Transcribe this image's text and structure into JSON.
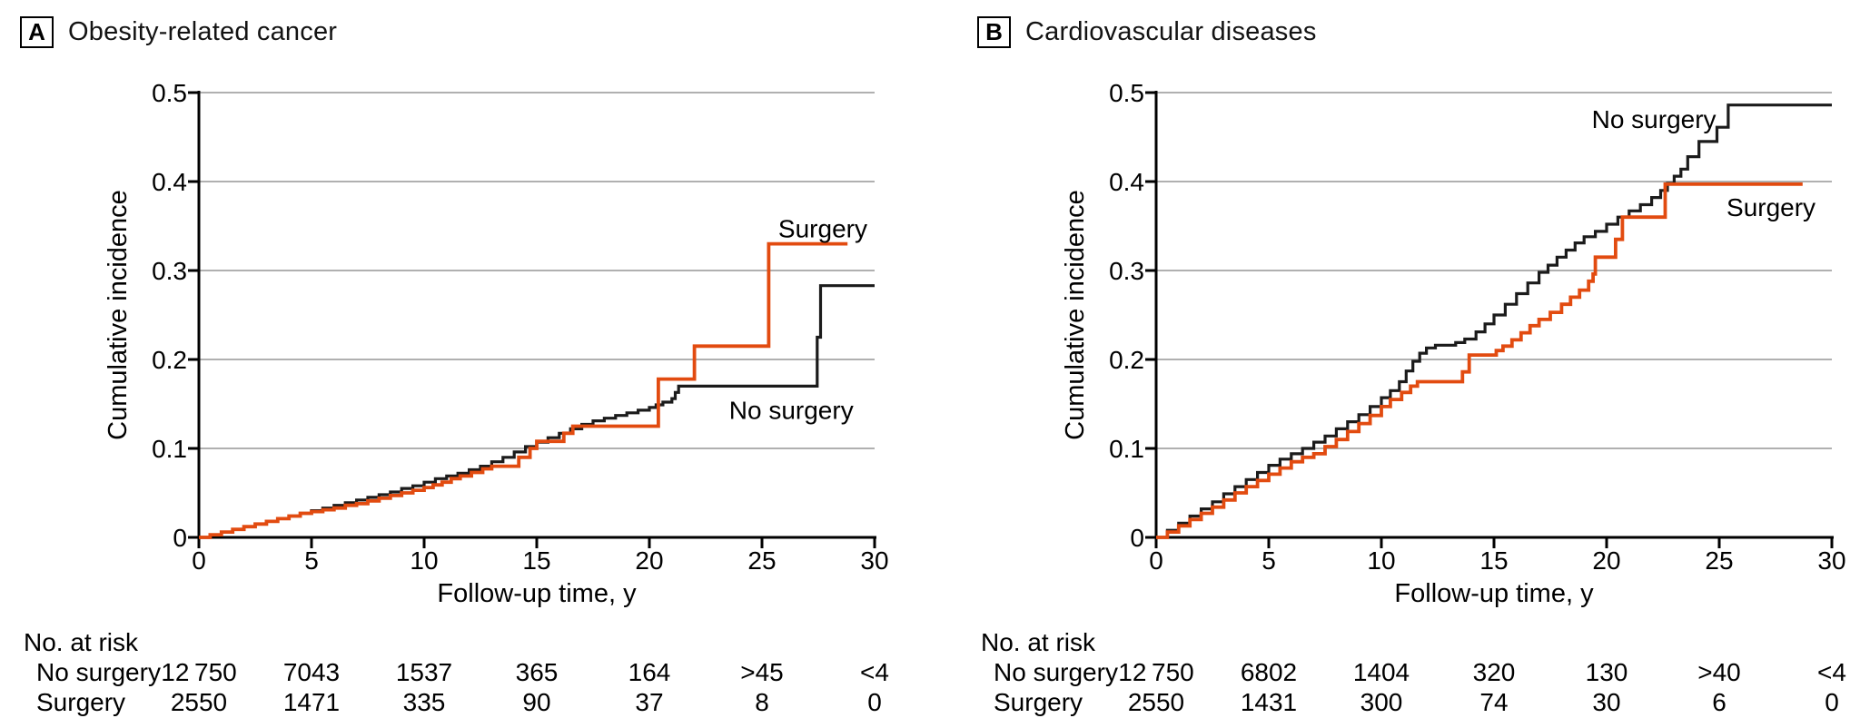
{
  "colors": {
    "surgery": "#E24B10",
    "no_surgery": "#1B1B1B",
    "gridline": "#B0B0B0",
    "axis": "#000000"
  },
  "chart_data": [
    {
      "type": "line",
      "panel_letter": "A",
      "title": "Obesity-related cancer",
      "xlabel": "Follow-up time, y",
      "ylabel": "Cumulative incidence",
      "xlim": [
        0,
        30
      ],
      "ylim": [
        0,
        0.5
      ],
      "grid": "horizontal",
      "legend_position": "inline-labels",
      "x_ticks": [
        0,
        5,
        10,
        15,
        20,
        25,
        30
      ],
      "x_tick_labels": [
        "0",
        "5",
        "10",
        "15",
        "20",
        "25",
        "30"
      ],
      "y_ticks": [
        0,
        0.1,
        0.2,
        0.3,
        0.4,
        0.5
      ],
      "y_tick_labels": [
        "0",
        "0.1",
        "0.2",
        "0.3",
        "0.4",
        "0.5"
      ],
      "series": [
        {
          "name": "No surgery",
          "color_key": "no_surgery",
          "points": [
            [
              0,
              0
            ],
            [
              0.5,
              0.003
            ],
            [
              1,
              0.006
            ],
            [
              1.5,
              0.009
            ],
            [
              2,
              0.012
            ],
            [
              2.5,
              0.015
            ],
            [
              3,
              0.018
            ],
            [
              3.5,
              0.021
            ],
            [
              4,
              0.024
            ],
            [
              4.5,
              0.027
            ],
            [
              5,
              0.03
            ],
            [
              5.5,
              0.033
            ],
            [
              6,
              0.036
            ],
            [
              6.5,
              0.039
            ],
            [
              7,
              0.042
            ],
            [
              7.5,
              0.045
            ],
            [
              8,
              0.048
            ],
            [
              8.5,
              0.051
            ],
            [
              9,
              0.055
            ],
            [
              9.5,
              0.058
            ],
            [
              10,
              0.062
            ],
            [
              10.5,
              0.066
            ],
            [
              11,
              0.069
            ],
            [
              11.5,
              0.072
            ],
            [
              12,
              0.076
            ],
            [
              12.5,
              0.08
            ],
            [
              13,
              0.085
            ],
            [
              13.5,
              0.09
            ],
            [
              14,
              0.096
            ],
            [
              14.5,
              0.102
            ],
            [
              15,
              0.107
            ],
            [
              15.5,
              0.112
            ],
            [
              16,
              0.117
            ],
            [
              16.5,
              0.122
            ],
            [
              17,
              0.127
            ],
            [
              17.5,
              0.131
            ],
            [
              18,
              0.134
            ],
            [
              18.5,
              0.137
            ],
            [
              19,
              0.14
            ],
            [
              19.5,
              0.143
            ],
            [
              20,
              0.146
            ],
            [
              20.3,
              0.149
            ],
            [
              20.6,
              0.152
            ],
            [
              21,
              0.156
            ],
            [
              21.15,
              0.163
            ],
            [
              21.3,
              0.17
            ],
            [
              27.35,
              0.17
            ],
            [
              27.45,
              0.225
            ],
            [
              27.6,
              0.283
            ],
            [
              30,
              0.283
            ]
          ]
        },
        {
          "name": "Surgery",
          "color_key": "surgery",
          "points": [
            [
              0,
              0
            ],
            [
              0.5,
              0.003
            ],
            [
              1,
              0.006
            ],
            [
              1.5,
              0.009
            ],
            [
              2,
              0.012
            ],
            [
              2.5,
              0.015
            ],
            [
              3,
              0.018
            ],
            [
              3.5,
              0.021
            ],
            [
              4,
              0.024
            ],
            [
              4.5,
              0.027
            ],
            [
              5,
              0.029
            ],
            [
              5.5,
              0.031
            ],
            [
              6,
              0.033
            ],
            [
              6.5,
              0.036
            ],
            [
              7,
              0.038
            ],
            [
              7.5,
              0.041
            ],
            [
              8,
              0.044
            ],
            [
              8.5,
              0.047
            ],
            [
              9,
              0.05
            ],
            [
              9.5,
              0.053
            ],
            [
              10,
              0.056
            ],
            [
              10.4,
              0.059
            ],
            [
              10.8,
              0.062
            ],
            [
              11.2,
              0.066
            ],
            [
              11.6,
              0.069
            ],
            [
              12.1,
              0.073
            ],
            [
              12.6,
              0.077
            ],
            [
              13,
              0.08
            ],
            [
              14.2,
              0.09
            ],
            [
              14.7,
              0.1
            ],
            [
              15,
              0.108
            ],
            [
              16.2,
              0.117
            ],
            [
              16.6,
              0.125
            ],
            [
              20.4,
              0.178
            ],
            [
              22,
              0.215
            ],
            [
              25.3,
              0.33
            ],
            [
              28.8,
              0.33
            ]
          ]
        }
      ],
      "curve_labels": [
        {
          "text": "Surgery",
          "year": 27.7,
          "value": 0.337
        },
        {
          "text": "No surgery",
          "year": 26.3,
          "value": 0.133
        }
      ],
      "risk_table": {
        "title": "No. at risk",
        "rows": [
          {
            "label": "No surgery",
            "values": [
              "12 750",
              "7043",
              "1537",
              "365",
              "164",
              ">45",
              "<4"
            ]
          },
          {
            "label": "Surgery",
            "values": [
              "2550",
              "1471",
              "335",
              "90",
              "37",
              "8",
              "0"
            ]
          }
        ]
      }
    },
    {
      "type": "line",
      "panel_letter": "B",
      "title": "Cardiovascular diseases",
      "xlabel": "Follow-up time, y",
      "ylabel": "Cumulative incidence",
      "xlim": [
        0,
        30
      ],
      "ylim": [
        0,
        0.5
      ],
      "grid": "horizontal",
      "legend_position": "inline-labels",
      "x_ticks": [
        0,
        5,
        10,
        15,
        20,
        25,
        30
      ],
      "x_tick_labels": [
        "0",
        "5",
        "10",
        "15",
        "20",
        "25",
        "30"
      ],
      "y_ticks": [
        0,
        0.1,
        0.2,
        0.3,
        0.4,
        0.5
      ],
      "y_tick_labels": [
        "0",
        "0.1",
        "0.2",
        "0.3",
        "0.4",
        "0.5"
      ],
      "series": [
        {
          "name": "No surgery",
          "color_key": "no_surgery",
          "points": [
            [
              0,
              0
            ],
            [
              0.5,
              0.008
            ],
            [
              1,
              0.016
            ],
            [
              1.5,
              0.024
            ],
            [
              2,
              0.032
            ],
            [
              2.5,
              0.04
            ],
            [
              3,
              0.049
            ],
            [
              3.5,
              0.057
            ],
            [
              4,
              0.065
            ],
            [
              4.5,
              0.073
            ],
            [
              5,
              0.081
            ],
            [
              5.5,
              0.088
            ],
            [
              6,
              0.094
            ],
            [
              6.5,
              0.1
            ],
            [
              7,
              0.107
            ],
            [
              7.5,
              0.114
            ],
            [
              8,
              0.122
            ],
            [
              8.5,
              0.13
            ],
            [
              9,
              0.138
            ],
            [
              9.5,
              0.147
            ],
            [
              10,
              0.157
            ],
            [
              10.4,
              0.165
            ],
            [
              10.8,
              0.175
            ],
            [
              11.1,
              0.187
            ],
            [
              11.4,
              0.198
            ],
            [
              11.7,
              0.207
            ],
            [
              12,
              0.213
            ],
            [
              12.4,
              0.216
            ],
            [
              13.3,
              0.219
            ],
            [
              13.7,
              0.223
            ],
            [
              14.2,
              0.231
            ],
            [
              14.6,
              0.24
            ],
            [
              15,
              0.25
            ],
            [
              15.5,
              0.262
            ],
            [
              16,
              0.274
            ],
            [
              16.5,
              0.286
            ],
            [
              17,
              0.298
            ],
            [
              17.4,
              0.306
            ],
            [
              17.8,
              0.315
            ],
            [
              18.2,
              0.323
            ],
            [
              18.6,
              0.331
            ],
            [
              19,
              0.338
            ],
            [
              19.5,
              0.344
            ],
            [
              20,
              0.352
            ],
            [
              20.5,
              0.36
            ],
            [
              21,
              0.367
            ],
            [
              21.5,
              0.374
            ],
            [
              22,
              0.382
            ],
            [
              22.4,
              0.39
            ],
            [
              22.7,
              0.398
            ],
            [
              23,
              0.406
            ],
            [
              23.3,
              0.414
            ],
            [
              23.6,
              0.428
            ],
            [
              24.1,
              0.445
            ],
            [
              24.9,
              0.461
            ],
            [
              25.4,
              0.486
            ],
            [
              30,
              0.486
            ]
          ]
        },
        {
          "name": "Surgery",
          "color_key": "surgery",
          "points": [
            [
              0,
              0
            ],
            [
              0.5,
              0.006
            ],
            [
              1,
              0.013
            ],
            [
              1.5,
              0.02
            ],
            [
              2,
              0.027
            ],
            [
              2.5,
              0.034
            ],
            [
              3,
              0.042
            ],
            [
              3.5,
              0.05
            ],
            [
              4,
              0.057
            ],
            [
              4.5,
              0.064
            ],
            [
              5,
              0.071
            ],
            [
              5.5,
              0.078
            ],
            [
              6,
              0.085
            ],
            [
              6.5,
              0.09
            ],
            [
              7,
              0.094
            ],
            [
              7.5,
              0.102
            ],
            [
              8,
              0.11
            ],
            [
              8.5,
              0.119
            ],
            [
              9,
              0.128
            ],
            [
              9.5,
              0.137
            ],
            [
              10,
              0.147
            ],
            [
              10.4,
              0.155
            ],
            [
              10.9,
              0.163
            ],
            [
              11.3,
              0.17
            ],
            [
              11.6,
              0.175
            ],
            [
              13.6,
              0.186
            ],
            [
              13.9,
              0.205
            ],
            [
              15.1,
              0.21
            ],
            [
              15.4,
              0.215
            ],
            [
              15.8,
              0.222
            ],
            [
              16.2,
              0.23
            ],
            [
              16.6,
              0.238
            ],
            [
              17,
              0.245
            ],
            [
              17.5,
              0.253
            ],
            [
              18,
              0.262
            ],
            [
              18.4,
              0.27
            ],
            [
              18.8,
              0.278
            ],
            [
              19.2,
              0.288
            ],
            [
              19.4,
              0.296
            ],
            [
              19.5,
              0.315
            ],
            [
              20.4,
              0.335
            ],
            [
              20.7,
              0.36
            ],
            [
              22.6,
              0.397
            ],
            [
              28.7,
              0.397
            ]
          ]
        }
      ],
      "curve_labels": [
        {
          "text": "No surgery",
          "year": 22.1,
          "value": 0.46
        },
        {
          "text": "Surgery",
          "year": 27.3,
          "value": 0.361
        }
      ],
      "risk_table": {
        "title": "No. at risk",
        "rows": [
          {
            "label": "No surgery",
            "values": [
              "12 750",
              "6802",
              "1404",
              "320",
              "130",
              ">40",
              "<4"
            ]
          },
          {
            "label": "Surgery",
            "values": [
              "2550",
              "1431",
              "300",
              "74",
              "30",
              "6",
              "0"
            ]
          }
        ]
      }
    }
  ]
}
